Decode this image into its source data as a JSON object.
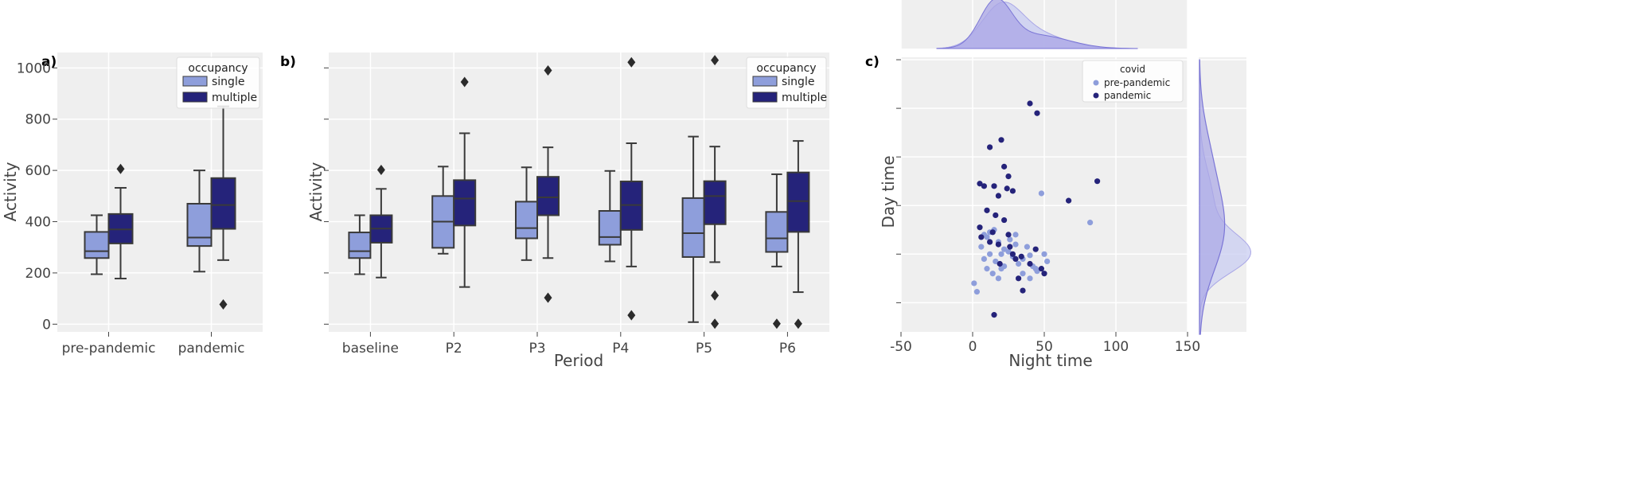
{
  "colors": {
    "single": "#8e9edb",
    "multiple": "#25237a",
    "pre": "#8e9edb",
    "pan": "#25237a",
    "kde1": "#a9a6e6",
    "kde2": "#c9cdf1"
  },
  "chart_data": [
    {
      "panel": "a)",
      "type": "box",
      "categories": [
        "pre-pandemic",
        "pandemic"
      ],
      "ylabel": "Activity",
      "xlabel": "",
      "ylim": [
        -30,
        1060
      ],
      "yticks": [
        "0",
        "200",
        "400",
        "600",
        "800",
        "1000"
      ],
      "legend": {
        "title": "occupancy",
        "labels": [
          "single",
          "multiple"
        ],
        "loc": "upper right"
      },
      "series": [
        {
          "name": "single",
          "boxes": [
            {
              "whislo": 195,
              "q1": 258,
              "med": 285,
              "q3": 360,
              "whishi": 425,
              "fliers": []
            },
            {
              "whislo": 205,
              "q1": 305,
              "med": 338,
              "q3": 470,
              "whishi": 600,
              "fliers": []
            }
          ]
        },
        {
          "name": "multiple",
          "boxes": [
            {
              "whislo": 178,
              "q1": 315,
              "med": 370,
              "q3": 430,
              "whishi": 532,
              "fliers": [
                606
              ]
            },
            {
              "whislo": 250,
              "q1": 372,
              "med": 465,
              "q3": 570,
              "whishi": 850,
              "fliers": [
                77
              ]
            }
          ]
        }
      ]
    },
    {
      "panel": "b)",
      "type": "box",
      "categories": [
        "baseline",
        "P2",
        "P3",
        "P4",
        "P5",
        "P6"
      ],
      "ylabel": "Activity",
      "xlabel": "Period",
      "ylim": [
        -30,
        1060
      ],
      "legend": {
        "title": "occupancy",
        "labels": [
          "single",
          "multiple"
        ],
        "loc": "upper right"
      },
      "series": [
        {
          "name": "single",
          "boxes": [
            {
              "whislo": 195,
              "q1": 258,
              "med": 285,
              "q3": 358,
              "whishi": 425,
              "fliers": []
            },
            {
              "whislo": 275,
              "q1": 298,
              "med": 400,
              "q3": 500,
              "whishi": 615,
              "fliers": []
            },
            {
              "whislo": 250,
              "q1": 335,
              "med": 375,
              "q3": 478,
              "whishi": 612,
              "fliers": []
            },
            {
              "whislo": 245,
              "q1": 310,
              "med": 340,
              "q3": 442,
              "whishi": 598,
              "fliers": []
            },
            {
              "whislo": 8,
              "q1": 262,
              "med": 355,
              "q3": 492,
              "whishi": 732,
              "fliers": []
            },
            {
              "whislo": 225,
              "q1": 282,
              "med": 335,
              "q3": 438,
              "whishi": 585,
              "fliers": [
                2
              ]
            }
          ]
        },
        {
          "name": "multiple",
          "boxes": [
            {
              "whislo": 182,
              "q1": 318,
              "med": 373,
              "q3": 425,
              "whishi": 528,
              "fliers": [
                602
              ]
            },
            {
              "whislo": 145,
              "q1": 385,
              "med": 490,
              "q3": 562,
              "whishi": 745,
              "fliers": [
                945
              ]
            },
            {
              "whislo": 258,
              "q1": 425,
              "med": 495,
              "q3": 575,
              "whishi": 690,
              "fliers": [
                990,
                103
              ]
            },
            {
              "whislo": 225,
              "q1": 368,
              "med": 465,
              "q3": 557,
              "whishi": 706,
              "fliers": [
                1022,
                35
              ]
            },
            {
              "whislo": 242,
              "q1": 390,
              "med": 500,
              "q3": 558,
              "whishi": 693,
              "fliers": [
                1030,
                112,
                2
              ]
            },
            {
              "whislo": 125,
              "q1": 360,
              "med": 480,
              "q3": 592,
              "whishi": 715,
              "fliers": [
                2
              ]
            }
          ]
        }
      ]
    },
    {
      "panel": "c)",
      "type": "scatter",
      "xlabel": "Night time",
      "ylabel": "Day time",
      "xlim": [
        -50,
        150
      ],
      "xticks": [
        "-50",
        "0",
        "50",
        "100",
        "150"
      ],
      "legend": {
        "title": "covid",
        "labels": [
          "pre-pandemic",
          "pandemic"
        ],
        "loc": "upper right"
      },
      "series": [
        {
          "name": "pre-pandemic",
          "points": [
            [
              1,
              -320
            ],
            [
              3,
              -355
            ],
            [
              8,
              -120
            ],
            [
              10,
              -130
            ],
            [
              12,
              -110
            ],
            [
              15,
              -100
            ],
            [
              18,
              -150
            ],
            [
              20,
              -200
            ],
            [
              22,
              -180
            ],
            [
              25,
              -190
            ],
            [
              28,
              -210
            ],
            [
              30,
              -160
            ],
            [
              32,
              -240
            ],
            [
              35,
              -220
            ],
            [
              38,
              -170
            ],
            [
              40,
              -205
            ],
            [
              42,
              -250
            ],
            [
              45,
              -270
            ],
            [
              50,
              -200
            ],
            [
              52,
              -230
            ],
            [
              48,
              50
            ],
            [
              82,
              -70
            ],
            [
              6,
              -170
            ],
            [
              10,
              -260
            ],
            [
              14,
              -280
            ],
            [
              18,
              -300
            ],
            [
              22,
              -250
            ],
            [
              26,
              -140
            ],
            [
              30,
              -120
            ],
            [
              35,
              -280
            ],
            [
              40,
              -300
            ],
            [
              44,
              -260
            ],
            [
              12,
              -200
            ],
            [
              16,
              -230
            ],
            [
              8,
              -220
            ],
            [
              20,
              -260
            ]
          ]
        },
        {
          "name": "pandemic",
          "points": [
            [
              40,
              420
            ],
            [
              20,
              270
            ],
            [
              45,
              380
            ],
            [
              12,
              240
            ],
            [
              22,
              160
            ],
            [
              25,
              120
            ],
            [
              28,
              60
            ],
            [
              5,
              90
            ],
            [
              8,
              80
            ],
            [
              15,
              80
            ],
            [
              18,
              40
            ],
            [
              24,
              70
            ],
            [
              10,
              -20
            ],
            [
              16,
              -40
            ],
            [
              22,
              -60
            ],
            [
              5,
              -90
            ],
            [
              12,
              -150
            ],
            [
              18,
              -160
            ],
            [
              25,
              -120
            ],
            [
              28,
              -200
            ],
            [
              30,
              -220
            ],
            [
              34,
              -210
            ],
            [
              40,
              -240
            ],
            [
              44,
              -180
            ],
            [
              48,
              -260
            ],
            [
              50,
              -280
            ],
            [
              35,
              -350
            ],
            [
              15,
              -450
            ],
            [
              87,
              100
            ],
            [
              67,
              20
            ],
            [
              6,
              -130
            ],
            [
              14,
              -110
            ],
            [
              19,
              -240
            ],
            [
              26,
              -170
            ],
            [
              32,
              -300
            ]
          ]
        }
      ],
      "kde_top": {
        "series": [
          "pre-pandemic",
          "pandemic"
        ]
      },
      "kde_right": {
        "series": [
          "pre-pandemic",
          "pandemic"
        ]
      }
    }
  ]
}
